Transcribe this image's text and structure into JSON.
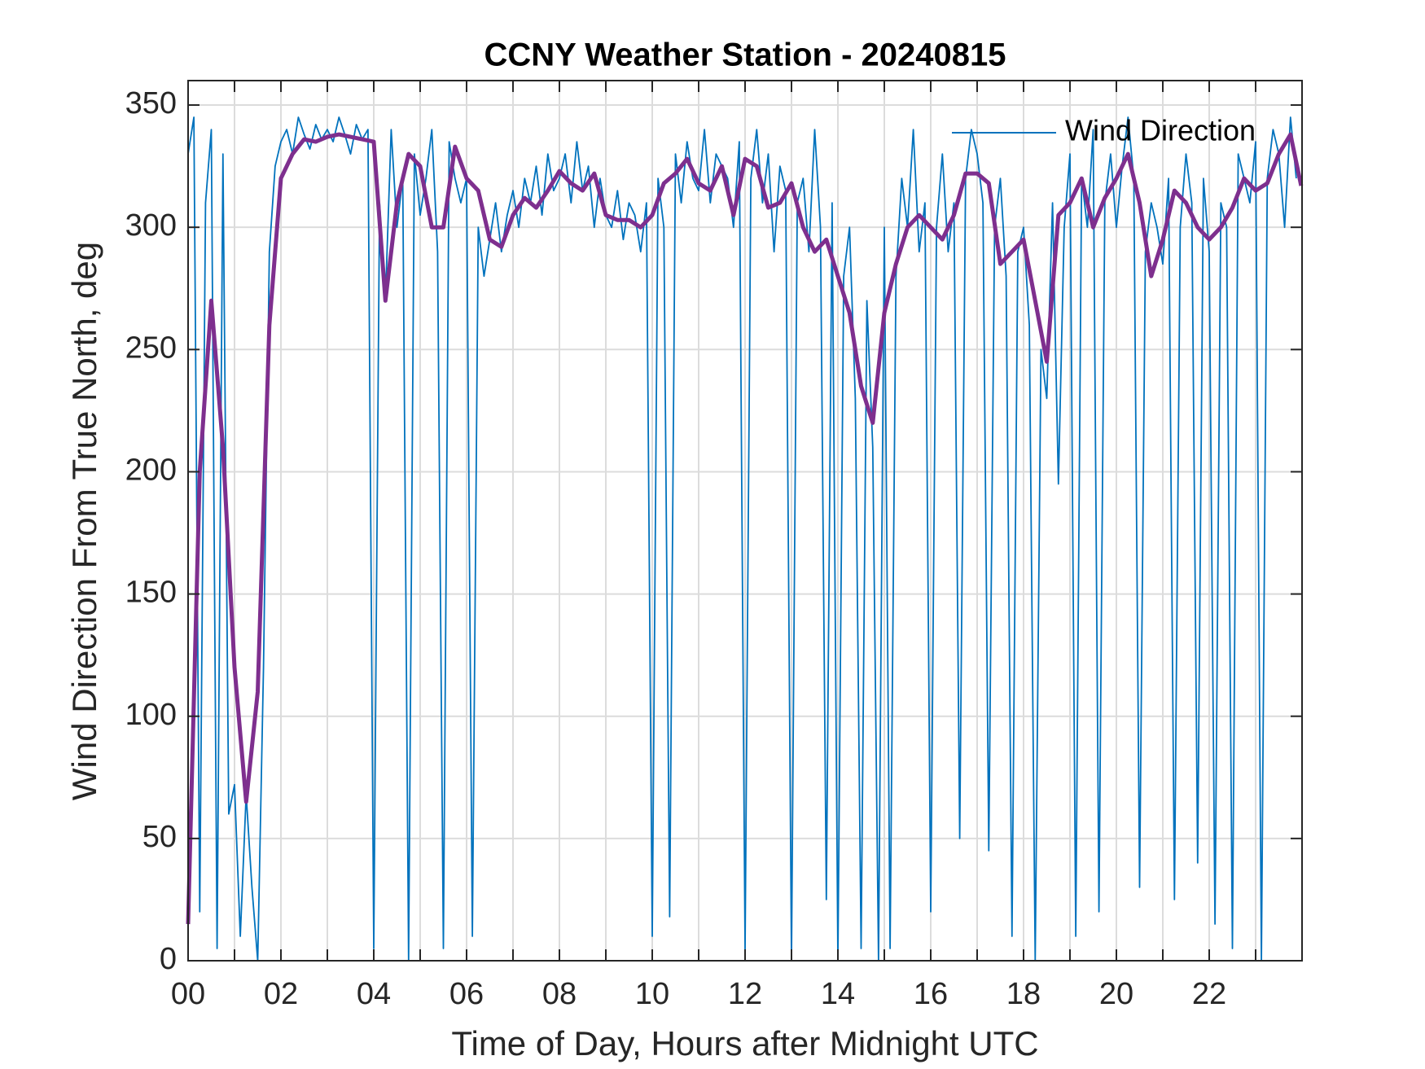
{
  "chart_data": {
    "type": "line",
    "title": "CCNY Weather Station - 20240815",
    "xlabel": "Time of Day, Hours after Midnight UTC",
    "ylabel": "Wind Direction From True North, deg",
    "xlim": [
      0,
      24
    ],
    "ylim": [
      0,
      360
    ],
    "xticks": [
      {
        "value": 0,
        "label": "00"
      },
      {
        "value": 2,
        "label": "02"
      },
      {
        "value": 4,
        "label": "04"
      },
      {
        "value": 6,
        "label": "06"
      },
      {
        "value": 8,
        "label": "08"
      },
      {
        "value": 10,
        "label": "10"
      },
      {
        "value": 12,
        "label": "12"
      },
      {
        "value": 14,
        "label": "14"
      },
      {
        "value": 16,
        "label": "16"
      },
      {
        "value": 18,
        "label": "18"
      },
      {
        "value": 20,
        "label": "20"
      },
      {
        "value": 22,
        "label": "22"
      }
    ],
    "xminor_ticks": [
      1,
      3,
      5,
      7,
      9,
      11,
      13,
      15,
      17,
      19,
      21,
      23
    ],
    "yticks": [
      0,
      50,
      100,
      150,
      200,
      250,
      300,
      350
    ],
    "grid": true,
    "legend": "northeast",
    "series": [
      {
        "name": "Wind Direction",
        "color": "#0072BD",
        "x": [
          0,
          0.125,
          0.25,
          0.375,
          0.5,
          0.625,
          0.75,
          0.875,
          1,
          1.125,
          1.25,
          1.375,
          1.5,
          1.625,
          1.75,
          1.875,
          2,
          2.125,
          2.25,
          2.375,
          2.5,
          2.625,
          2.75,
          2.875,
          3,
          3.125,
          3.25,
          3.375,
          3.5,
          3.625,
          3.75,
          3.875,
          4,
          4.125,
          4.25,
          4.375,
          4.5,
          4.625,
          4.75,
          4.875,
          5,
          5.125,
          5.25,
          5.375,
          5.5,
          5.625,
          5.75,
          5.875,
          6,
          6.125,
          6.25,
          6.375,
          6.5,
          6.625,
          6.75,
          6.875,
          7,
          7.125,
          7.25,
          7.375,
          7.5,
          7.625,
          7.75,
          7.875,
          8,
          8.125,
          8.25,
          8.375,
          8.5,
          8.625,
          8.75,
          8.875,
          9,
          9.125,
          9.25,
          9.375,
          9.5,
          9.625,
          9.75,
          9.875,
          10,
          10.125,
          10.25,
          10.375,
          10.5,
          10.625,
          10.75,
          10.875,
          11,
          11.125,
          11.25,
          11.375,
          11.5,
          11.625,
          11.75,
          11.875,
          12,
          12.125,
          12.25,
          12.375,
          12.5,
          12.625,
          12.75,
          12.875,
          13,
          13.125,
          13.25,
          13.375,
          13.5,
          13.625,
          13.75,
          13.875,
          14,
          14.125,
          14.25,
          14.375,
          14.5,
          14.625,
          14.75,
          14.875,
          15,
          15.125,
          15.25,
          15.375,
          15.5,
          15.625,
          15.75,
          15.875,
          16,
          16.125,
          16.25,
          16.375,
          16.5,
          16.625,
          16.75,
          16.875,
          17,
          17.125,
          17.25,
          17.375,
          17.5,
          17.625,
          17.75,
          17.875,
          18,
          18.125,
          18.25,
          18.375,
          18.5,
          18.625,
          18.75,
          18.875,
          19,
          19.125,
          19.25,
          19.375,
          19.5,
          19.625,
          19.75,
          19.875,
          20,
          20.125,
          20.25,
          20.375,
          20.5,
          20.625,
          20.75,
          20.875,
          21,
          21.125,
          21.25,
          21.375,
          21.5,
          21.625,
          21.75,
          21.875,
          22,
          22.125,
          22.25,
          22.375,
          22.5,
          22.625,
          22.75,
          22.875,
          23,
          23.125,
          23.25,
          23.375,
          23.5,
          23.625,
          23.75,
          23.875
        ],
        "values": [
          330,
          345,
          20,
          310,
          340,
          5,
          330,
          60,
          72,
          10,
          68,
          30,
          0,
          120,
          290,
          325,
          335,
          340,
          330,
          345,
          338,
          332,
          342,
          336,
          340,
          335,
          345,
          338,
          330,
          342,
          336,
          340,
          5,
          310,
          270,
          340,
          300,
          320,
          0,
          330,
          305,
          320,
          340,
          290,
          5,
          335,
          320,
          310,
          320,
          10,
          300,
          280,
          295,
          310,
          290,
          305,
          315,
          300,
          320,
          310,
          325,
          305,
          330,
          315,
          320,
          330,
          310,
          335,
          315,
          325,
          300,
          320,
          305,
          300,
          315,
          295,
          310,
          305,
          290,
          310,
          10,
          320,
          300,
          18,
          330,
          310,
          335,
          320,
          315,
          340,
          310,
          330,
          325,
          320,
          300,
          335,
          4,
          320,
          340,
          310,
          330,
          290,
          325,
          315,
          0,
          310,
          320,
          290,
          340,
          300,
          25,
          310,
          0,
          280,
          300,
          230,
          5,
          270,
          210,
          0,
          300,
          5,
          280,
          320,
          300,
          340,
          290,
          310,
          20,
          300,
          330,
          290,
          310,
          50,
          320,
          340,
          330,
          310,
          45,
          300,
          320,
          280,
          10,
          290,
          300,
          260,
          0,
          250,
          230,
          310,
          195,
          300,
          330,
          10,
          320,
          300,
          340,
          20,
          310,
          330,
          300,
          325,
          345,
          320,
          30,
          290,
          310,
          300,
          285,
          320,
          25,
          300,
          330,
          310,
          40,
          320,
          290,
          15,
          310,
          300,
          5,
          330,
          320,
          310,
          335,
          0,
          320,
          340,
          330,
          300,
          345,
          320
        ]
      },
      {
        "color": "#7E2F8E",
        "x": [
          0,
          0.25,
          0.5,
          0.75,
          1,
          1.25,
          1.5,
          1.75,
          2,
          2.25,
          2.5,
          2.75,
          3,
          3.25,
          3.5,
          3.75,
          4,
          4.25,
          4.5,
          4.75,
          5,
          5.25,
          5.5,
          5.75,
          6,
          6.25,
          6.5,
          6.75,
          7,
          7.25,
          7.5,
          7.75,
          8,
          8.25,
          8.5,
          8.75,
          9,
          9.25,
          9.5,
          9.75,
          10,
          10.25,
          10.5,
          10.75,
          11,
          11.25,
          11.5,
          11.75,
          12,
          12.25,
          12.5,
          12.75,
          13,
          13.25,
          13.5,
          13.75,
          14,
          14.25,
          14.5,
          14.75,
          15,
          15.25,
          15.5,
          15.75,
          16,
          16.25,
          16.5,
          16.75,
          17,
          17.25,
          17.5,
          17.75,
          18,
          18.25,
          18.5,
          18.75,
          19,
          19.25,
          19.5,
          19.75,
          20,
          20.25,
          20.5,
          20.75,
          21,
          21.25,
          21.5,
          21.75,
          22,
          22.25,
          22.5,
          22.75,
          23,
          23.25,
          23.5,
          23.75,
          23.98
        ],
        "values": [
          15,
          200,
          270,
          210,
          120,
          65,
          110,
          260,
          320,
          330,
          336,
          335,
          337,
          338,
          337,
          336,
          335,
          270,
          310,
          330,
          325,
          300,
          300,
          333,
          320,
          315,
          295,
          292,
          305,
          312,
          308,
          315,
          323,
          318,
          315,
          322,
          305,
          303,
          303,
          300,
          305,
          318,
          322,
          328,
          318,
          315,
          325,
          305,
          328,
          325,
          308,
          310,
          318,
          300,
          290,
          295,
          280,
          265,
          235,
          220,
          265,
          285,
          300,
          305,
          300,
          295,
          305,
          322,
          322,
          318,
          285,
          290,
          295,
          270,
          245,
          305,
          310,
          320,
          300,
          312,
          320,
          330,
          310,
          280,
          295,
          315,
          310,
          300,
          295,
          300,
          308,
          320,
          315,
          318,
          330,
          338,
          317
        ]
      }
    ]
  }
}
